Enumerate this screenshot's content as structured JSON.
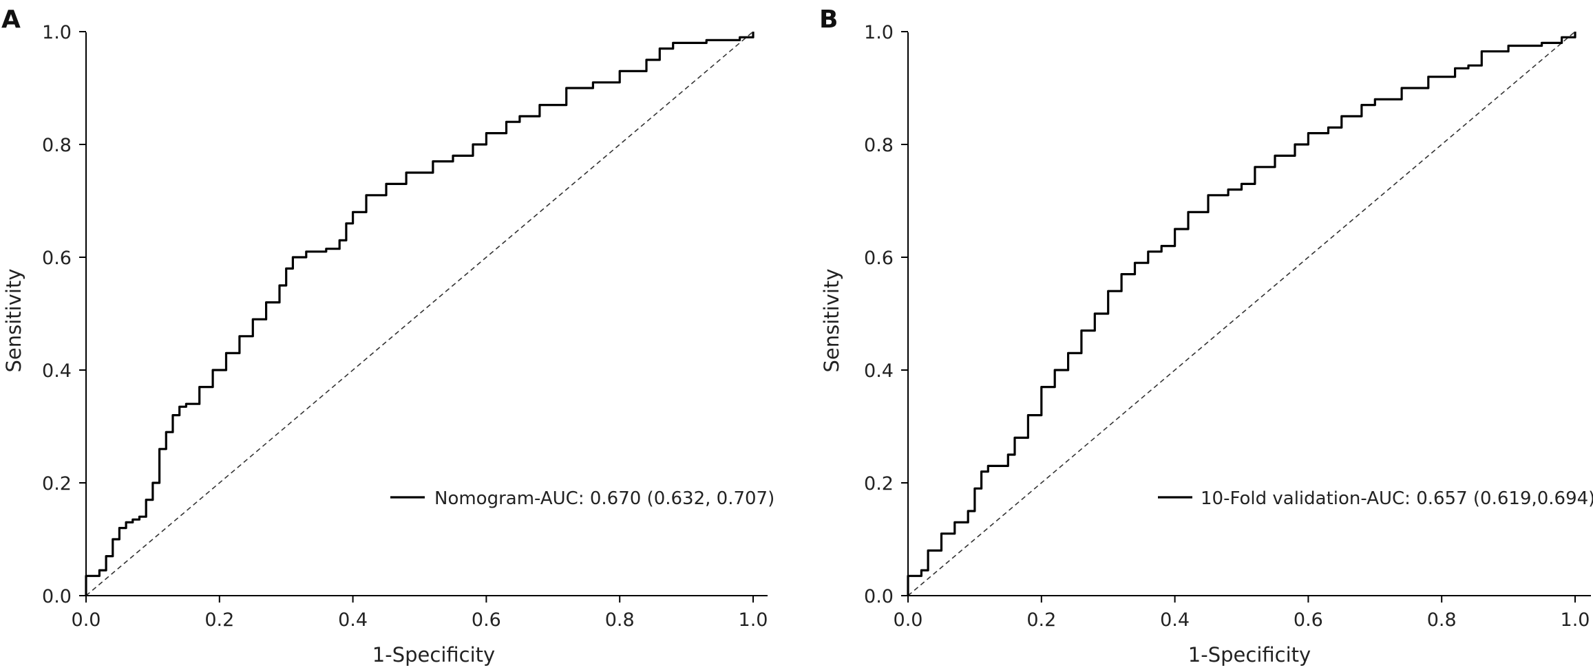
{
  "chart_data": [
    {
      "panel_label": "A",
      "type": "line",
      "xlabel": "1-Specificity",
      "ylabel": "Sensitivity",
      "xlim": [
        0,
        1
      ],
      "ylim": [
        0,
        1
      ],
      "xticks": [
        "0.0",
        "0.2",
        "0.4",
        "0.6",
        "0.8",
        "1.0"
      ],
      "yticks": [
        "0.0",
        "0.2",
        "0.4",
        "0.6",
        "0.8",
        "1.0"
      ],
      "grid": false,
      "legend_position": "bottom-right",
      "reference_line": {
        "x": [
          0,
          1
        ],
        "y": [
          0,
          1
        ],
        "style": "dashed"
      },
      "series": [
        {
          "name": "Nomogram-AUC: 0.670 (0.632, 0.707)",
          "color": "#000000",
          "x": [
            0.0,
            0.0,
            0.02,
            0.03,
            0.04,
            0.05,
            0.06,
            0.07,
            0.08,
            0.09,
            0.1,
            0.11,
            0.12,
            0.13,
            0.14,
            0.15,
            0.17,
            0.19,
            0.21,
            0.23,
            0.25,
            0.27,
            0.29,
            0.3,
            0.31,
            0.33,
            0.36,
            0.38,
            0.39,
            0.4,
            0.42,
            0.45,
            0.48,
            0.52,
            0.55,
            0.58,
            0.6,
            0.63,
            0.65,
            0.68,
            0.72,
            0.76,
            0.8,
            0.84,
            0.86,
            0.88,
            0.93,
            0.98,
            1.0
          ],
          "y": [
            0.0,
            0.035,
            0.045,
            0.07,
            0.1,
            0.12,
            0.13,
            0.135,
            0.14,
            0.17,
            0.2,
            0.26,
            0.29,
            0.32,
            0.335,
            0.34,
            0.37,
            0.4,
            0.43,
            0.46,
            0.49,
            0.52,
            0.55,
            0.58,
            0.6,
            0.61,
            0.615,
            0.63,
            0.66,
            0.68,
            0.71,
            0.73,
            0.75,
            0.77,
            0.78,
            0.8,
            0.82,
            0.84,
            0.85,
            0.87,
            0.9,
            0.91,
            0.93,
            0.95,
            0.97,
            0.98,
            0.985,
            0.99,
            1.0
          ]
        }
      ]
    },
    {
      "panel_label": "B",
      "type": "line",
      "xlabel": "1-Specificity",
      "ylabel": "Sensitivity",
      "xlim": [
        0,
        1
      ],
      "ylim": [
        0,
        1
      ],
      "xticks": [
        "0.0",
        "0.2",
        "0.4",
        "0.6",
        "0.8",
        "1.0"
      ],
      "yticks": [
        "0.0",
        "0.2",
        "0.4",
        "0.6",
        "0.8",
        "1.0"
      ],
      "grid": false,
      "legend_position": "bottom-right",
      "reference_line": {
        "x": [
          0,
          1
        ],
        "y": [
          0,
          1
        ],
        "style": "dashed"
      },
      "series": [
        {
          "name": "10-Fold validation-AUC: 0.657 (0.619,0.694)",
          "color": "#000000",
          "x": [
            0.0,
            0.0,
            0.02,
            0.03,
            0.05,
            0.07,
            0.09,
            0.1,
            0.11,
            0.12,
            0.15,
            0.16,
            0.18,
            0.2,
            0.22,
            0.24,
            0.26,
            0.28,
            0.3,
            0.32,
            0.34,
            0.36,
            0.38,
            0.4,
            0.42,
            0.45,
            0.48,
            0.5,
            0.52,
            0.55,
            0.58,
            0.6,
            0.63,
            0.65,
            0.68,
            0.7,
            0.74,
            0.78,
            0.82,
            0.84,
            0.86,
            0.9,
            0.95,
            0.98,
            1.0
          ],
          "y": [
            0.0,
            0.035,
            0.045,
            0.08,
            0.11,
            0.13,
            0.15,
            0.19,
            0.22,
            0.23,
            0.25,
            0.28,
            0.32,
            0.37,
            0.4,
            0.43,
            0.47,
            0.5,
            0.54,
            0.57,
            0.59,
            0.61,
            0.62,
            0.65,
            0.68,
            0.71,
            0.72,
            0.73,
            0.76,
            0.78,
            0.8,
            0.82,
            0.83,
            0.85,
            0.87,
            0.88,
            0.9,
            0.92,
            0.935,
            0.94,
            0.965,
            0.975,
            0.98,
            0.99,
            1.0
          ]
        }
      ]
    }
  ]
}
